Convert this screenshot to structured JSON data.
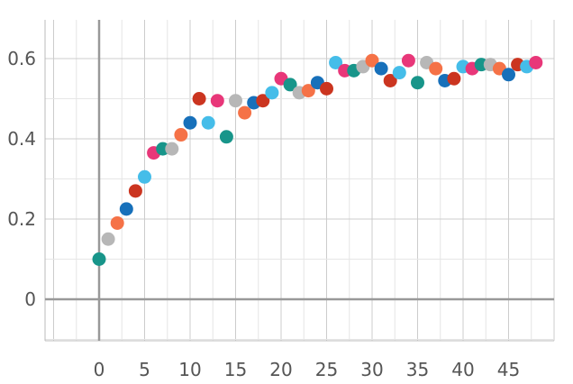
{
  "chart_data": {
    "type": "scatter",
    "title": "",
    "xlabel": "",
    "ylabel": "",
    "xlim": [
      -5,
      50
    ],
    "ylim": [
      -0.1,
      0.7
    ],
    "x_ticks": [
      0,
      5,
      10,
      15,
      20,
      25,
      30,
      35,
      40,
      45
    ],
    "y_ticks": [
      0,
      0.2,
      0.4,
      0.6
    ],
    "x_tick_labels": [
      "0",
      "5",
      "10",
      "15",
      "20",
      "25",
      "30",
      "35",
      "40",
      "45"
    ],
    "y_tick_labels": [
      "0",
      "0.2",
      "0.4",
      "0.6"
    ],
    "grid": true,
    "legend": "none",
    "palette": [
      "#18958a",
      "#b7b7b7",
      "#f57247",
      "#1770ba",
      "#cb3520",
      "#45bde9",
      "#e83779"
    ],
    "x": [
      0,
      1,
      2,
      3,
      4,
      5,
      6,
      7,
      8,
      9,
      10,
      11,
      12,
      13,
      14,
      15,
      16,
      17,
      18,
      19,
      20,
      21,
      22,
      23,
      24,
      25,
      26,
      27,
      28,
      29,
      30,
      31,
      32,
      33,
      34,
      35,
      36,
      37,
      38,
      39,
      40,
      41,
      42,
      43,
      44,
      45,
      46,
      47,
      48
    ],
    "y": [
      0.1,
      0.15,
      0.19,
      0.225,
      0.27,
      0.305,
      0.365,
      0.375,
      0.375,
      0.41,
      0.44,
      0.5,
      0.44,
      0.495,
      0.405,
      0.495,
      0.465,
      0.49,
      0.495,
      0.515,
      0.55,
      0.535,
      0.515,
      0.52,
      0.54,
      0.525,
      0.59,
      0.57,
      0.57,
      0.58,
      0.595,
      0.575,
      0.545,
      0.565,
      0.595,
      0.54,
      0.59,
      0.575,
      0.545,
      0.55,
      0.58,
      0.575,
      0.585,
      0.585,
      0.575,
      0.56,
      0.585,
      0.58,
      0.59
    ]
  }
}
